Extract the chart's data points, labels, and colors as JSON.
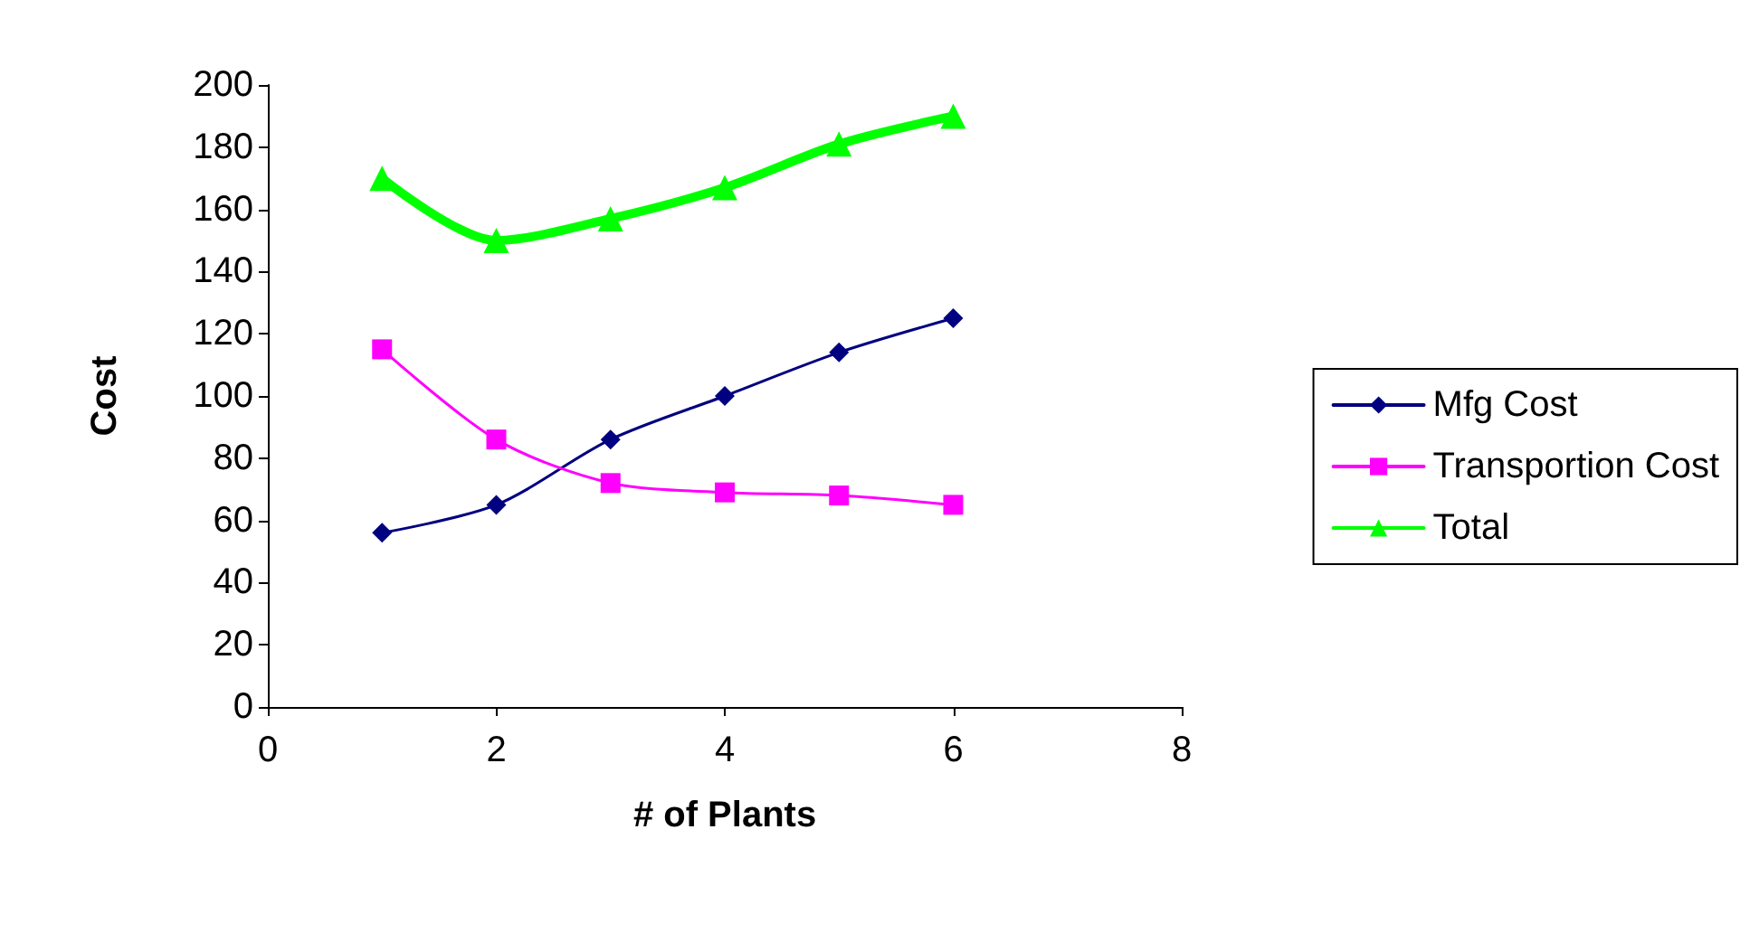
{
  "chart_data": {
    "type": "line",
    "xlabel": "# of Plants",
    "ylabel": "Cost",
    "x": [
      1,
      2,
      3,
      4,
      5,
      6
    ],
    "series": [
      {
        "name": "Mfg Cost",
        "color": "#000080",
        "marker": "diamond",
        "values": [
          56,
          65,
          86,
          100,
          114,
          125
        ]
      },
      {
        "name": "Transportion Cost",
        "color": "#ff00ff",
        "marker": "square",
        "values": [
          115,
          86,
          72,
          69,
          68,
          65
        ]
      },
      {
        "name": "Total",
        "color": "#00ff00",
        "marker": "triangle",
        "values": [
          170,
          150,
          157,
          167,
          181,
          190
        ]
      }
    ],
    "xlim": [
      0,
      8
    ],
    "xticks": [
      0,
      2,
      4,
      6,
      8
    ],
    "ylim": [
      0,
      200
    ],
    "yticks": [
      0,
      20,
      40,
      60,
      80,
      100,
      120,
      140,
      160,
      180,
      200
    ],
    "grid": false,
    "legend": "right"
  }
}
